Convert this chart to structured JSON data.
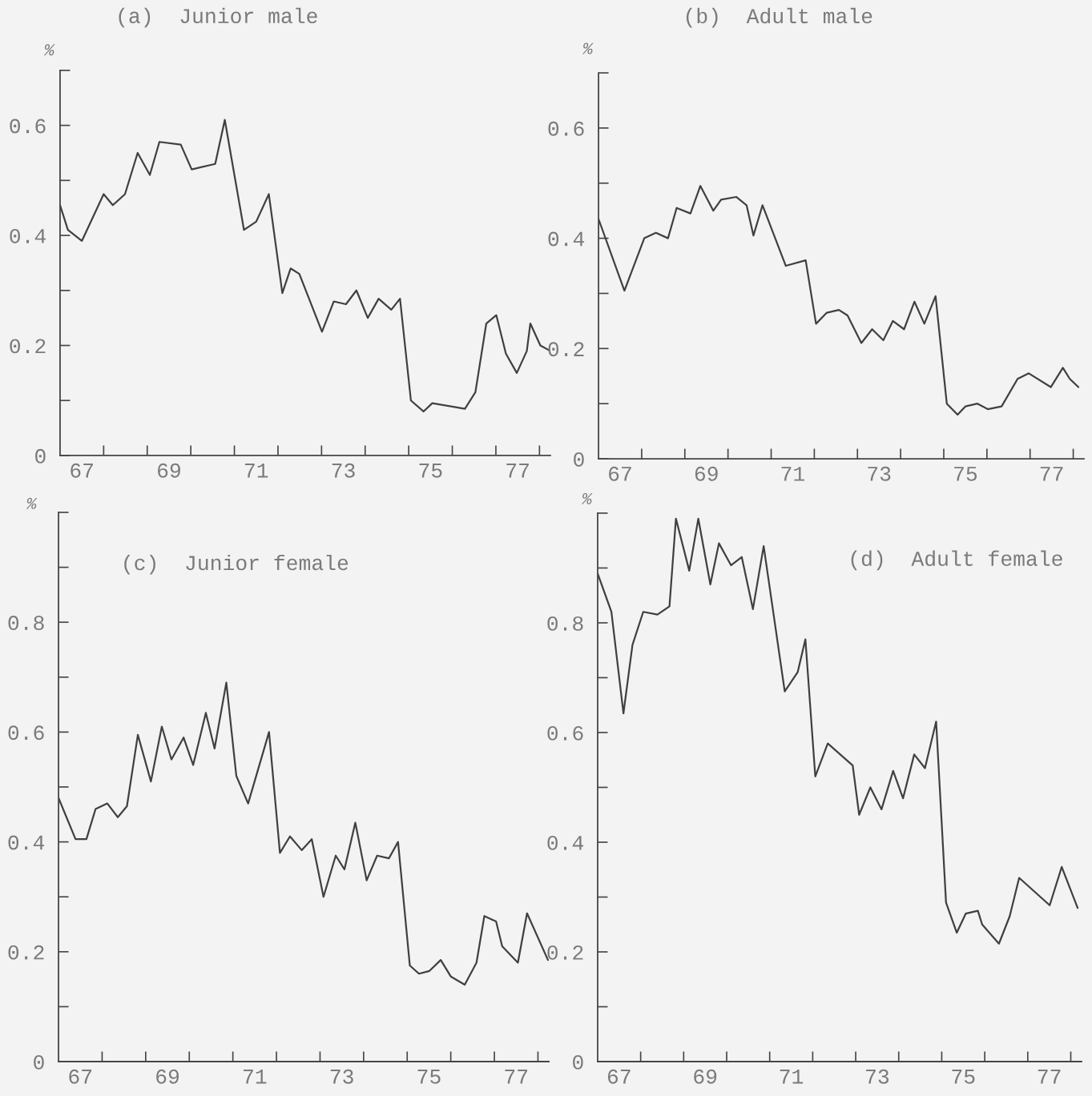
{
  "chart_data": [
    {
      "type": "line",
      "title": "(a)  Junior male",
      "ylabel": "%",
      "x": [
        67.0,
        67.18,
        67.5,
        68.0,
        68.21,
        68.49,
        68.78,
        69.06,
        69.28,
        69.77,
        70.02,
        70.56,
        70.78,
        71.22,
        71.5,
        71.79,
        72.1,
        72.29,
        72.49,
        73.01,
        73.28,
        73.56,
        73.8,
        74.06,
        74.31,
        74.6,
        74.8,
        75.05,
        75.34,
        75.54,
        76.29,
        76.53,
        76.78,
        77.01,
        77.23,
        77.48,
        77.71,
        77.79,
        78.02,
        78.25
      ],
      "series": [
        {
          "color": "#404040",
          "values": [
            0.455,
            0.41,
            0.39,
            0.475,
            0.455,
            0.475,
            0.55,
            0.51,
            0.57,
            0.565,
            0.52,
            0.53,
            0.61,
            0.41,
            0.425,
            0.475,
            0.295,
            0.34,
            0.33,
            0.225,
            0.28,
            0.275,
            0.3,
            0.25,
            0.285,
            0.265,
            0.285,
            0.1,
            0.08,
            0.095,
            0.085,
            0.115,
            0.24,
            0.255,
            0.185,
            0.15,
            0.19,
            0.24,
            0.2,
            0.19
          ]
        }
      ],
      "xlim": [
        67,
        78.25
      ],
      "ylim": [
        0,
        0.7
      ],
      "xticks": [
        {
          "value": 67.5,
          "label": "67"
        },
        {
          "value": 68,
          "label": null
        },
        {
          "value": 69,
          "label": null
        },
        {
          "value": 69.5,
          "label": "69"
        },
        {
          "value": 70,
          "label": null
        },
        {
          "value": 71,
          "label": null
        },
        {
          "value": 71.5,
          "label": "71"
        },
        {
          "value": 72,
          "label": null
        },
        {
          "value": 73,
          "label": null
        },
        {
          "value": 73.5,
          "label": "73"
        },
        {
          "value": 74,
          "label": null
        },
        {
          "value": 75,
          "label": null
        },
        {
          "value": 75.5,
          "label": "75"
        },
        {
          "value": 76,
          "label": null
        },
        {
          "value": 77,
          "label": null
        },
        {
          "value": 77.5,
          "label": "77"
        },
        {
          "value": 78,
          "label": null
        }
      ],
      "yticks": [
        0,
        {
          "value": 0.1,
          "label": null
        },
        0.2,
        {
          "value": 0.3,
          "label": null
        },
        0.4,
        {
          "value": 0.5,
          "label": null
        },
        0.6,
        {
          "value": 0.7,
          "label": null
        }
      ]
    },
    {
      "type": "line",
      "title": "(b)  Adult male",
      "ylabel": "%",
      "x": [
        67.0,
        67.6,
        68.06,
        68.33,
        68.61,
        68.81,
        69.13,
        69.36,
        69.66,
        69.84,
        70.19,
        70.43,
        70.59,
        70.8,
        71.34,
        71.8,
        72.04,
        72.29,
        72.57,
        72.77,
        73.09,
        73.34,
        73.6,
        73.82,
        74.08,
        74.32,
        74.55,
        74.81,
        75.07,
        75.32,
        75.5,
        75.78,
        76.02,
        76.34,
        76.71,
        76.97,
        77.48,
        77.76,
        77.92,
        78.12
      ],
      "series": [
        {
          "color": "#404040",
          "values": [
            0.435,
            0.305,
            0.4,
            0.41,
            0.4,
            0.455,
            0.445,
            0.495,
            0.45,
            0.47,
            0.475,
            0.46,
            0.405,
            0.46,
            0.35,
            0.36,
            0.245,
            0.265,
            0.27,
            0.26,
            0.21,
            0.235,
            0.215,
            0.25,
            0.235,
            0.285,
            0.245,
            0.295,
            0.1,
            0.08,
            0.095,
            0.1,
            0.09,
            0.095,
            0.145,
            0.155,
            0.13,
            0.165,
            0.145,
            0.13
          ]
        }
      ],
      "xlim": [
        67,
        78.25
      ],
      "ylim": [
        0,
        0.7
      ],
      "xticks": [
        {
          "value": 67.5,
          "label": "67"
        },
        {
          "value": 68,
          "label": null
        },
        {
          "value": 69,
          "label": null
        },
        {
          "value": 69.5,
          "label": "69"
        },
        {
          "value": 70,
          "label": null
        },
        {
          "value": 71,
          "label": null
        },
        {
          "value": 71.5,
          "label": "71"
        },
        {
          "value": 72,
          "label": null
        },
        {
          "value": 73,
          "label": null
        },
        {
          "value": 73.5,
          "label": "73"
        },
        {
          "value": 74,
          "label": null
        },
        {
          "value": 75,
          "label": null
        },
        {
          "value": 75.5,
          "label": "75"
        },
        {
          "value": 76,
          "label": null
        },
        {
          "value": 77,
          "label": null
        },
        {
          "value": 77.5,
          "label": "77"
        },
        {
          "value": 78,
          "label": null
        }
      ],
      "yticks": [
        0,
        {
          "value": 0.1,
          "label": null
        },
        0.2,
        {
          "value": 0.3,
          "label": null
        },
        0.4,
        {
          "value": 0.5,
          "label": null
        },
        0.6,
        {
          "value": 0.7,
          "label": null
        }
      ]
    },
    {
      "type": "line",
      "title": "(c)  Junior female",
      "ylabel": "%",
      "x": [
        67.0,
        67.39,
        67.64,
        67.85,
        68.12,
        68.36,
        68.57,
        68.82,
        69.12,
        69.37,
        69.59,
        69.87,
        70.09,
        70.38,
        70.58,
        70.85,
        71.08,
        71.35,
        71.83,
        72.08,
        72.31,
        72.58,
        72.81,
        73.08,
        73.36,
        73.56,
        73.81,
        74.07,
        74.31,
        74.58,
        74.79,
        75.06,
        75.27,
        75.51,
        75.77,
        76.0,
        76.32,
        76.59,
        76.77,
        77.04,
        77.18,
        77.54,
        77.75,
        78.23
      ],
      "series": [
        {
          "color": "#404040",
          "values": [
            0.48,
            0.405,
            0.405,
            0.46,
            0.47,
            0.445,
            0.465,
            0.595,
            0.51,
            0.61,
            0.55,
            0.59,
            0.54,
            0.635,
            0.57,
            0.69,
            0.52,
            0.47,
            0.6,
            0.38,
            0.41,
            0.385,
            0.405,
            0.3,
            0.375,
            0.35,
            0.435,
            0.33,
            0.375,
            0.37,
            0.4,
            0.175,
            0.16,
            0.165,
            0.185,
            0.155,
            0.14,
            0.18,
            0.265,
            0.255,
            0.21,
            0.18,
            0.27,
            0.185
          ]
        }
      ],
      "xlim": [
        67,
        78.25
      ],
      "ylim": [
        0,
        1
      ],
      "xticks": [
        {
          "value": 67.5,
          "label": "67"
        },
        {
          "value": 68,
          "label": null
        },
        {
          "value": 69,
          "label": null
        },
        {
          "value": 69.5,
          "label": "69"
        },
        {
          "value": 70,
          "label": null
        },
        {
          "value": 71,
          "label": null
        },
        {
          "value": 71.5,
          "label": "71"
        },
        {
          "value": 72,
          "label": null
        },
        {
          "value": 73,
          "label": null
        },
        {
          "value": 73.5,
          "label": "73"
        },
        {
          "value": 74,
          "label": null
        },
        {
          "value": 75,
          "label": null
        },
        {
          "value": 75.5,
          "label": "75"
        },
        {
          "value": 76,
          "label": null
        },
        {
          "value": 77,
          "label": null
        },
        {
          "value": 77.5,
          "label": "77"
        },
        {
          "value": 78,
          "label": null
        }
      ],
      "yticks": [
        0,
        {
          "value": 0.1,
          "label": null
        },
        0.2,
        {
          "value": 0.3,
          "label": null
        },
        0.4,
        {
          "value": 0.5,
          "label": null
        },
        0.6,
        {
          "value": 0.7,
          "label": null
        },
        0.8,
        {
          "value": 0.9,
          "label": null
        },
        {
          "value": 1,
          "label": null
        }
      ]
    },
    {
      "type": "line",
      "title": "(d)  Adult female",
      "ylabel": "%",
      "x": [
        67.0,
        67.32,
        67.6,
        67.81,
        68.06,
        68.39,
        68.67,
        68.82,
        69.13,
        69.34,
        69.62,
        69.82,
        70.1,
        70.35,
        70.61,
        70.86,
        71.35,
        71.65,
        71.83,
        72.06,
        72.35,
        72.93,
        73.08,
        73.34,
        73.6,
        73.87,
        74.1,
        74.36,
        74.61,
        74.87,
        75.1,
        75.35,
        75.56,
        75.84,
        75.94,
        76.33,
        76.58,
        76.8,
        77.51,
        77.79,
        78.16
      ],
      "series": [
        {
          "color": "#404040",
          "values": [
            0.89,
            0.82,
            0.635,
            0.76,
            0.82,
            0.815,
            0.83,
            0.99,
            0.895,
            0.99,
            0.87,
            0.945,
            0.905,
            0.92,
            0.825,
            0.94,
            0.675,
            0.71,
            0.77,
            0.52,
            0.58,
            0.54,
            0.45,
            0.5,
            0.46,
            0.53,
            0.48,
            0.56,
            0.535,
            0.62,
            0.29,
            0.235,
            0.27,
            0.275,
            0.25,
            0.215,
            0.265,
            0.335,
            0.285,
            0.355,
            0.28
          ]
        }
      ],
      "xlim": [
        67,
        78.25
      ],
      "ylim": [
        0,
        1
      ],
      "xticks": [
        {
          "value": 67.5,
          "label": "67"
        },
        {
          "value": 68,
          "label": null
        },
        {
          "value": 69,
          "label": null
        },
        {
          "value": 69.5,
          "label": "69"
        },
        {
          "value": 70,
          "label": null
        },
        {
          "value": 71,
          "label": null
        },
        {
          "value": 71.5,
          "label": "71"
        },
        {
          "value": 72,
          "label": null
        },
        {
          "value": 73,
          "label": null
        },
        {
          "value": 73.5,
          "label": "73"
        },
        {
          "value": 74,
          "label": null
        },
        {
          "value": 75,
          "label": null
        },
        {
          "value": 75.5,
          "label": "75"
        },
        {
          "value": 76,
          "label": null
        },
        {
          "value": 77,
          "label": null
        },
        {
          "value": 77.5,
          "label": "77"
        },
        {
          "value": 78,
          "label": null
        }
      ],
      "yticks": [
        0,
        {
          "value": 0.1,
          "label": null
        },
        0.2,
        {
          "value": 0.3,
          "label": null
        },
        0.4,
        {
          "value": 0.5,
          "label": null
        },
        0.6,
        {
          "value": 0.7,
          "label": null
        },
        0.8,
        {
          "value": 0.9,
          "label": null
        },
        {
          "value": 1,
          "label": null
        }
      ]
    }
  ]
}
